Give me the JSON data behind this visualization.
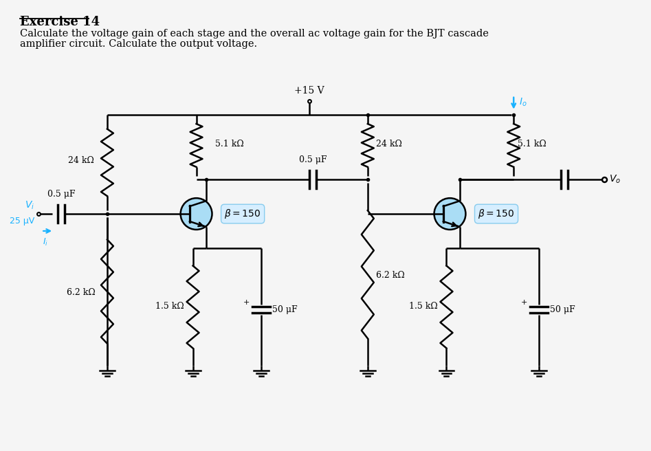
{
  "title": "Exercise 14",
  "subtitle_line1": "Calculate the voltage gain of each stage and the overall ac voltage gain for the BJT cascade",
  "subtitle_line2": "amplifier circuit. Calculate the output voltage.",
  "vcc_label": "+15 V",
  "r1_label": "24 kΩ",
  "r2_label": "6.2 kΩ",
  "rc1_label": "5.1 kΩ",
  "rc2_label": "24 kΩ",
  "rc3_label": "5.1 kΩ",
  "re1_label": "1.5 kΩ",
  "re2_label": "1.5 kΩ",
  "r6_label": "6.2 kΩ",
  "cin_label": "0.5 μF",
  "cc_label": "0.5 μF",
  "ce1_label": "50 μF",
  "ce2_label": "50 μF",
  "beta_label": "β = 150",
  "vi_label": "V_i",
  "vi_val": "25 μV",
  "ii_label": "I_i",
  "vo_label": "V_o",
  "io_label": "I_o",
  "cyan": "#1ab2ff",
  "black": "#000000",
  "transistor_fill": "#aaddf5",
  "bg": "#f5f5f5"
}
